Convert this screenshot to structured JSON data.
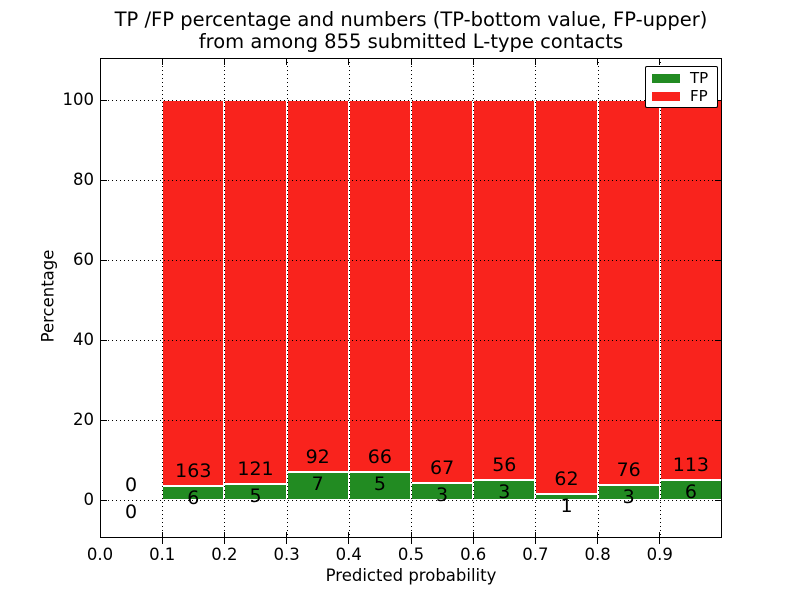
{
  "title": {
    "line1": "TP /FP percentage and numbers (TP-bottom value, FP-upper)",
    "line2": "from among 855 submitted L-type contacts"
  },
  "axes": {
    "xlabel": "Predicted probability",
    "ylabel": "Percentage",
    "x_tick_labels": [
      "0.0",
      "0.1",
      "0.2",
      "0.3",
      "0.4",
      "0.5",
      "0.6",
      "0.7",
      "0.8",
      "0.9"
    ],
    "x_tick_values": [
      0.0,
      0.1,
      0.2,
      0.3,
      0.4,
      0.5,
      0.6,
      0.7,
      0.8,
      0.9
    ],
    "y_tick_labels": [
      "0",
      "20",
      "40",
      "60",
      "80",
      "100"
    ],
    "y_tick_values": [
      0,
      20,
      40,
      60,
      80,
      100
    ],
    "grid": true
  },
  "legend": [
    {
      "label": "TP",
      "color": "#228b22"
    },
    {
      "label": "FP",
      "color": "#f9231d"
    }
  ],
  "colors": {
    "tp": "#228b22",
    "fp": "#f9231d",
    "text": "#000000",
    "background": "#ffffff"
  },
  "chart_data": {
    "type": "bar",
    "stacked": true,
    "normalization": "each bar stacked to 100% of bin total; counts shown as labels",
    "title": "TP /FP percentage and numbers (TP-bottom value, FP-upper) from among 855 submitted L-type contacts",
    "xlabel": "Predicted probability",
    "ylabel": "Percentage",
    "total_contacts": 855,
    "bin_width": 0.1,
    "bin_starts": [
      0.0,
      0.1,
      0.2,
      0.3,
      0.4,
      0.5,
      0.6,
      0.7,
      0.8,
      0.9
    ],
    "series": [
      {
        "name": "TP",
        "color": "#228b22",
        "counts": [
          0,
          6,
          5,
          7,
          5,
          3,
          3,
          1,
          3,
          6
        ]
      },
      {
        "name": "FP",
        "color": "#f9231d",
        "counts": [
          0,
          163,
          121,
          92,
          66,
          67,
          56,
          62,
          76,
          113
        ]
      }
    ],
    "tp_percent_of_bin": [
      null,
      3.55,
      3.97,
      7.07,
      7.04,
      4.29,
      5.08,
      1.59,
      3.8,
      5.04
    ],
    "xlim": [
      0.0,
      1.0
    ],
    "ylim": [
      -9.5,
      110.5
    ],
    "legend_position": "upper right",
    "grid": "dotted"
  }
}
